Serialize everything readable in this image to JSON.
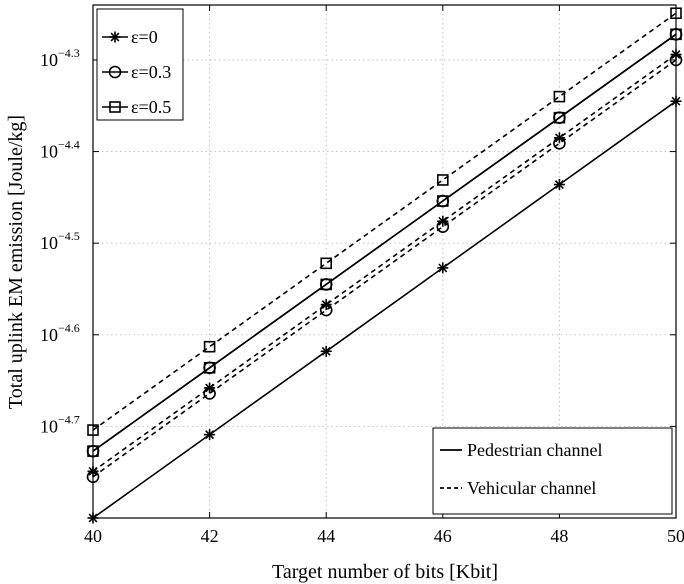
{
  "chart_data": {
    "type": "line",
    "title": "",
    "xlabel": "Target number of bits [Kbit]",
    "ylabel": "Total uplink EM emission [Joule/kg]",
    "x": [
      40,
      42,
      44,
      46,
      48,
      50
    ],
    "xlim": [
      40,
      50
    ],
    "xticks": [
      "40",
      "42",
      "44",
      "46",
      "48",
      "50"
    ],
    "yscale": "log",
    "ylim_log10": [
      -4.8,
      -4.24
    ],
    "yticks": [
      {
        "base": "10",
        "exp": "−4.3",
        "log10": -4.3
      },
      {
        "base": "10",
        "exp": "−4.4",
        "log10": -4.4
      },
      {
        "base": "10",
        "exp": "−4.5",
        "log10": -4.5
      },
      {
        "base": "10",
        "exp": "−4.6",
        "log10": -4.6
      },
      {
        "base": "10",
        "exp": "−4.7",
        "log10": -4.7
      }
    ],
    "grid": true,
    "series": [
      {
        "name": "ε=0",
        "channel": "Pedestrian channel",
        "marker": "star",
        "dash": "solid",
        "log10_values": [
          -4.8,
          -4.709,
          -4.618,
          -4.527,
          -4.436,
          -4.345
        ]
      },
      {
        "name": "ε=0",
        "channel": "Vehicular channel",
        "marker": "star",
        "dash": "dashed",
        "log10_values": [
          -4.749,
          -4.658,
          -4.567,
          -4.476,
          -4.385,
          -4.294
        ]
      },
      {
        "name": "ε=0.3",
        "channel": "Pedestrian channel",
        "marker": "circle",
        "dash": "solid",
        "log10_values": [
          -4.727,
          -4.636,
          -4.545,
          -4.454,
          -4.363,
          -4.272
        ]
      },
      {
        "name": "ε=0.3",
        "channel": "Vehicular channel",
        "marker": "circle",
        "dash": "dashed",
        "log10_values": [
          -4.755,
          -4.664,
          -4.573,
          -4.482,
          -4.391,
          -4.3
        ]
      },
      {
        "name": "ε=0.5",
        "channel": "Pedestrian channel",
        "marker": "square",
        "dash": "solid",
        "log10_values": [
          -4.727,
          -4.636,
          -4.545,
          -4.454,
          -4.363,
          -4.272
        ]
      },
      {
        "name": "ε=0.5",
        "channel": "Vehicular channel",
        "marker": "square",
        "dash": "dashed",
        "log10_values": [
          -4.704,
          -4.613,
          -4.522,
          -4.431,
          -4.34,
          -4.249
        ]
      }
    ],
    "legend_markers": {
      "position": "top-left",
      "entries": [
        {
          "label": "ε=0",
          "marker": "star"
        },
        {
          "label": "ε=0.3",
          "marker": "circle"
        },
        {
          "label": "ε=0.5",
          "marker": "square"
        }
      ]
    },
    "legend_lines": {
      "position": "bottom-right",
      "entries": [
        {
          "label": "Pedestrian channel",
          "dash": "solid"
        },
        {
          "label": "Vehicular channel",
          "dash": "dashed"
        }
      ]
    },
    "colors": {
      "line": "#000000",
      "grid": "#bdbdbd",
      "background": "#ffffff"
    }
  }
}
